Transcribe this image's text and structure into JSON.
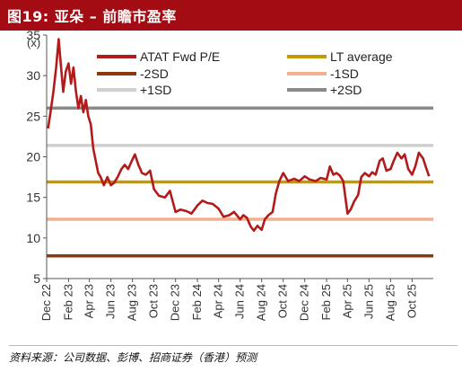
{
  "header": {
    "title": "图19: 亚朵 – 前瞻市盈率"
  },
  "source": "资料来源：公司数据、彭博、招商证券（香港）预测",
  "chart_data": {
    "type": "line",
    "ylabel": "(x)",
    "ylim": [
      5,
      35
    ],
    "yticks": [
      5,
      10,
      15,
      20,
      25,
      30,
      35
    ],
    "xlim": [
      "2022-12-01",
      "2025-11-30"
    ],
    "xticks": [
      {
        "label": "Dec 22",
        "date": "2022-12-01"
      },
      {
        "label": "Feb 23",
        "date": "2023-02-01"
      },
      {
        "label": "Apr 23",
        "date": "2023-04-01"
      },
      {
        "label": "Jun 23",
        "date": "2023-06-01"
      },
      {
        "label": "Aug 23",
        "date": "2023-08-01"
      },
      {
        "label": "Oct 23",
        "date": "2023-10-01"
      },
      {
        "label": "Dec 23",
        "date": "2023-12-01"
      },
      {
        "label": "Feb 24",
        "date": "2024-02-01"
      },
      {
        "label": "Apr 24",
        "date": "2024-04-01"
      },
      {
        "label": "Jun 24",
        "date": "2024-06-01"
      },
      {
        "label": "Aug 24",
        "date": "2024-08-01"
      },
      {
        "label": "Oct 24",
        "date": "2024-10-01"
      },
      {
        "label": "Dec 24",
        "date": "2024-12-01"
      },
      {
        "label": "Feb 25",
        "date": "2025-02-01"
      },
      {
        "label": "Apr 25",
        "date": "2025-04-01"
      },
      {
        "label": "Jun 25",
        "date": "2025-06-01"
      },
      {
        "label": "Aug 25",
        "date": "2025-08-01"
      },
      {
        "label": "Oct 25",
        "date": "2025-10-01"
      }
    ],
    "legend": [
      {
        "label": "ATAT Fwd P/E",
        "color": "#b31b1b"
      },
      {
        "label": "LT average",
        "color": "#c39a00"
      },
      {
        "label": "-2SD",
        "color": "#8b3a10"
      },
      {
        "label": "-1SD",
        "color": "#f2b08e"
      },
      {
        "label": "+1SD",
        "color": "#cfcfcf"
      },
      {
        "label": "+2SD",
        "color": "#8a8a8a"
      }
    ],
    "reference_lines": [
      {
        "name": "+2SD",
        "value": 26.0,
        "color": "#8a8a8a"
      },
      {
        "name": "+1SD",
        "value": 21.4,
        "color": "#cfcfcf"
      },
      {
        "name": "LT average",
        "value": 16.9,
        "color": "#c39a00"
      },
      {
        "name": "-1SD",
        "value": 12.3,
        "color": "#f2b08e"
      },
      {
        "name": "-2SD",
        "value": 7.8,
        "color": "#8b3a10"
      }
    ],
    "series": [
      {
        "name": "ATAT Fwd P/E",
        "color": "#b31b1b",
        "points": [
          [
            "2022-12-05",
            23.5
          ],
          [
            "2022-12-12",
            25.5
          ],
          [
            "2022-12-20",
            28.0
          ],
          [
            "2022-12-28",
            31.0
          ],
          [
            "2023-01-04",
            34.5
          ],
          [
            "2023-01-10",
            31.5
          ],
          [
            "2023-01-17",
            28.0
          ],
          [
            "2023-01-24",
            30.5
          ],
          [
            "2023-02-01",
            31.5
          ],
          [
            "2023-02-08",
            29.0
          ],
          [
            "2023-02-15",
            31.0
          ],
          [
            "2023-02-22",
            28.0
          ],
          [
            "2023-03-01",
            26.0
          ],
          [
            "2023-03-08",
            27.5
          ],
          [
            "2023-03-15",
            25.5
          ],
          [
            "2023-03-22",
            27.0
          ],
          [
            "2023-03-29",
            25.0
          ],
          [
            "2023-04-05",
            24.0
          ],
          [
            "2023-04-12",
            21.0
          ],
          [
            "2023-04-19",
            19.5
          ],
          [
            "2023-04-26",
            18.0
          ],
          [
            "2023-05-03",
            17.5
          ],
          [
            "2023-05-12",
            16.5
          ],
          [
            "2023-05-22",
            17.5
          ],
          [
            "2023-06-01",
            16.5
          ],
          [
            "2023-06-10",
            16.8
          ],
          [
            "2023-06-20",
            17.5
          ],
          [
            "2023-07-01",
            18.5
          ],
          [
            "2023-07-10",
            19.0
          ],
          [
            "2023-07-20",
            18.5
          ],
          [
            "2023-07-30",
            19.5
          ],
          [
            "2023-08-08",
            20.3
          ],
          [
            "2023-08-18",
            19.0
          ],
          [
            "2023-08-28",
            18.0
          ],
          [
            "2023-09-08",
            17.8
          ],
          [
            "2023-09-20",
            18.3
          ],
          [
            "2023-10-01",
            16.0
          ],
          [
            "2023-10-15",
            15.2
          ],
          [
            "2023-11-01",
            15.0
          ],
          [
            "2023-11-15",
            15.8
          ],
          [
            "2023-12-01",
            13.2
          ],
          [
            "2023-12-15",
            13.5
          ],
          [
            "2024-01-01",
            13.3
          ],
          [
            "2024-01-15",
            13.0
          ],
          [
            "2024-02-01",
            14.0
          ],
          [
            "2024-02-15",
            14.6
          ],
          [
            "2024-03-01",
            14.3
          ],
          [
            "2024-03-15",
            14.2
          ],
          [
            "2024-04-01",
            13.6
          ],
          [
            "2024-04-15",
            12.6
          ],
          [
            "2024-05-01",
            12.8
          ],
          [
            "2024-05-15",
            13.2
          ],
          [
            "2024-06-01",
            12.3
          ],
          [
            "2024-06-10",
            12.8
          ],
          [
            "2024-06-20",
            12.5
          ],
          [
            "2024-07-01",
            11.4
          ],
          [
            "2024-07-10",
            10.9
          ],
          [
            "2024-07-20",
            11.5
          ],
          [
            "2024-08-01",
            11.0
          ],
          [
            "2024-08-10",
            12.3
          ],
          [
            "2024-08-20",
            12.8
          ],
          [
            "2024-09-01",
            13.2
          ],
          [
            "2024-09-10",
            15.5
          ],
          [
            "2024-09-20",
            17.0
          ],
          [
            "2024-10-01",
            18.0
          ],
          [
            "2024-10-15",
            17.0
          ],
          [
            "2024-11-01",
            17.3
          ],
          [
            "2024-11-15",
            17.0
          ],
          [
            "2024-12-01",
            17.6
          ],
          [
            "2024-12-15",
            17.2
          ],
          [
            "2025-01-01",
            17.0
          ],
          [
            "2025-01-15",
            17.4
          ],
          [
            "2025-02-01",
            17.2
          ],
          [
            "2025-02-10",
            18.8
          ],
          [
            "2025-02-20",
            17.8
          ],
          [
            "2025-03-01",
            18.0
          ],
          [
            "2025-03-10",
            17.7
          ],
          [
            "2025-03-20",
            17.0
          ],
          [
            "2025-04-01",
            13.0
          ],
          [
            "2025-04-10",
            13.5
          ],
          [
            "2025-04-20",
            14.5
          ],
          [
            "2025-05-01",
            15.3
          ],
          [
            "2025-05-10",
            17.5
          ],
          [
            "2025-05-20",
            18.0
          ],
          [
            "2025-06-01",
            17.6
          ],
          [
            "2025-06-10",
            18.1
          ],
          [
            "2025-06-20",
            17.8
          ],
          [
            "2025-07-01",
            19.5
          ],
          [
            "2025-07-10",
            19.8
          ],
          [
            "2025-07-20",
            18.3
          ],
          [
            "2025-08-01",
            18.5
          ],
          [
            "2025-08-10",
            19.5
          ],
          [
            "2025-08-20",
            20.5
          ],
          [
            "2025-09-01",
            19.8
          ],
          [
            "2025-09-10",
            20.3
          ],
          [
            "2025-09-20",
            18.5
          ],
          [
            "2025-10-01",
            17.8
          ],
          [
            "2025-10-10",
            18.8
          ],
          [
            "2025-10-20",
            20.5
          ],
          [
            "2025-11-01",
            19.8
          ],
          [
            "2025-11-10",
            18.6
          ],
          [
            "2025-11-18",
            17.6
          ]
        ]
      }
    ]
  }
}
